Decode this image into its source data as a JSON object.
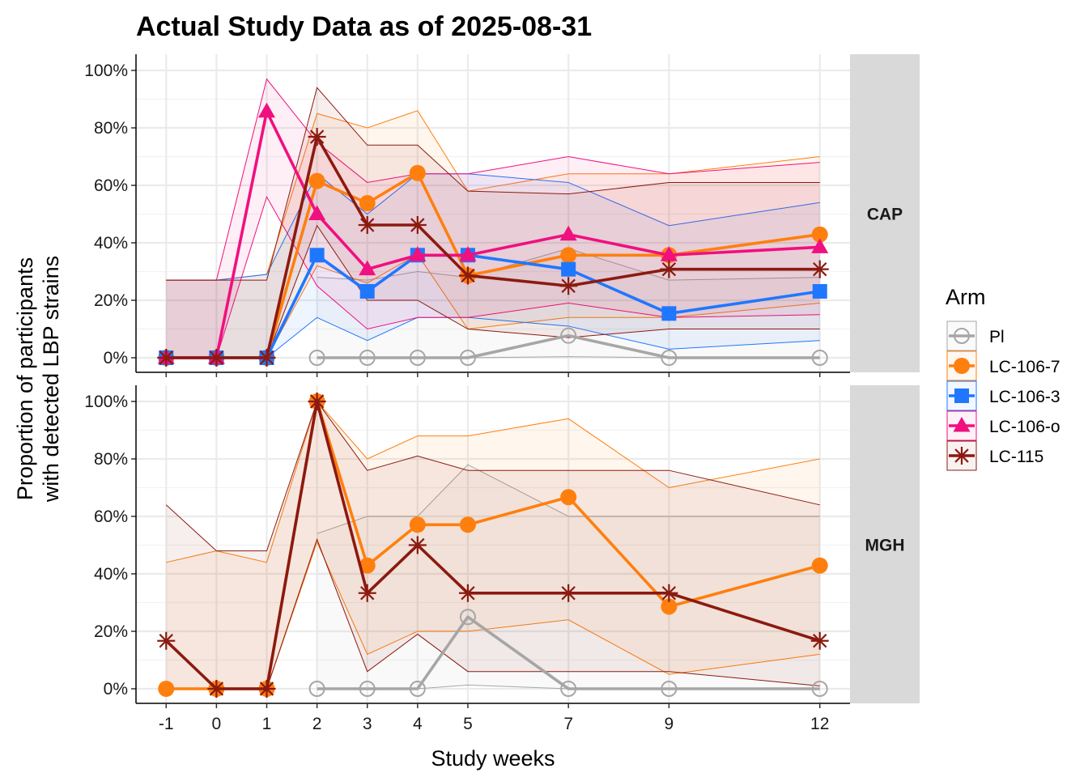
{
  "chart_data": {
    "type": "line",
    "title": "Actual Study Data as of 2025-08-31",
    "xlabel": "Study weeks",
    "ylabel_line1": "Proportion of participants",
    "ylabel_line2": "with detected LBP strains",
    "x": [
      -1,
      0,
      1,
      2,
      3,
      4,
      5,
      7,
      9,
      12
    ],
    "x_tick_labels": [
      "-1",
      "0",
      "1",
      "2",
      "3",
      "4",
      "5",
      "7",
      "9",
      "12"
    ],
    "ylim": [
      0,
      1
    ],
    "y_ticks": [
      0,
      0.2,
      0.4,
      0.6,
      0.8,
      1.0
    ],
    "y_tick_labels": [
      "0%",
      "20%",
      "40%",
      "60%",
      "80%",
      "100%"
    ],
    "grid": true,
    "legend": {
      "title": "Arm",
      "position": "right",
      "entries": [
        "Pl",
        "LC-106-7",
        "LC-106-3",
        "LC-106-o",
        "LC-115"
      ]
    },
    "series_styles": [
      {
        "arm": "Pl",
        "color": "#a6a6a6",
        "marker": "open-circle"
      },
      {
        "arm": "LC-106-7",
        "color": "#ff7f0e",
        "marker": "filled-circle"
      },
      {
        "arm": "LC-106-3",
        "color": "#1f77ff",
        "marker": "filled-square"
      },
      {
        "arm": "LC-106-o",
        "color": "#f0107f",
        "marker": "filled-triangle"
      },
      {
        "arm": "LC-115",
        "color": "#8b1a10",
        "marker": "asterisk"
      }
    ],
    "panels": [
      {
        "label": "CAP",
        "series": [
          {
            "arm": "Pl",
            "x": [
              2,
              3,
              4,
              5,
              7,
              9,
              12
            ],
            "values": [
              0,
              0,
              0,
              0,
              0.077,
              0,
              0
            ],
            "lower": [
              0,
              0,
              0,
              0,
              0.004,
              0,
              0
            ],
            "upper": [
              0.28,
              0.27,
              0.3,
              0.28,
              0.38,
              0.27,
              0.28
            ]
          },
          {
            "arm": "LC-106-7",
            "x": [
              -1,
              0,
              1,
              2,
              3,
              4,
              5,
              7,
              9,
              12
            ],
            "values": [
              0,
              0,
              0,
              0.615,
              0.538,
              0.643,
              0.286,
              0.357,
              0.357,
              0.429
            ],
            "lower": [
              0,
              0,
              0,
              0.32,
              0.26,
              0.36,
              0.1,
              0.14,
              0.14,
              0.19
            ],
            "upper": [
              0.27,
              0.27,
              0.29,
              0.85,
              0.8,
              0.86,
              0.58,
              0.64,
              0.64,
              0.7
            ]
          },
          {
            "arm": "LC-106-3",
            "x": [
              -1,
              0,
              1,
              2,
              3,
              4,
              5,
              7,
              9,
              12
            ],
            "values": [
              0,
              0,
              0,
              0.357,
              0.231,
              0.357,
              0.357,
              0.308,
              0.154,
              0.231
            ],
            "lower": [
              0,
              0,
              0,
              0.14,
              0.06,
              0.14,
              0.14,
              0.11,
              0.03,
              0.06
            ],
            "upper": [
              0.27,
              0.27,
              0.29,
              0.64,
              0.5,
              0.64,
              0.64,
              0.61,
              0.46,
              0.54
            ]
          },
          {
            "arm": "LC-106-o",
            "x": [
              -1,
              0,
              1,
              2,
              3,
              4,
              5,
              7,
              9,
              12
            ],
            "values": [
              0,
              0,
              0.857,
              0.5,
              0.308,
              0.357,
              0.357,
              0.429,
              0.357,
              0.385
            ],
            "lower": [
              0,
              0,
              0.56,
              0.25,
              0.1,
              0.14,
              0.14,
              0.19,
              0.14,
              0.15
            ],
            "upper": [
              0.27,
              0.27,
              0.97,
              0.75,
              0.61,
              0.64,
              0.64,
              0.7,
              0.64,
              0.68
            ]
          },
          {
            "arm": "LC-115",
            "x": [
              -1,
              0,
              1,
              2,
              3,
              4,
              5,
              7,
              9,
              12
            ],
            "values": [
              0,
              0,
              0,
              0.769,
              0.462,
              0.462,
              0.286,
              0.25,
              0.308,
              0.308
            ],
            "lower": [
              0,
              0,
              0,
              0.46,
              0.2,
              0.2,
              0.1,
              0.07,
              0.1,
              0.1
            ],
            "upper": [
              0.27,
              0.27,
              0.27,
              0.94,
              0.74,
              0.74,
              0.58,
              0.57,
              0.61,
              0.61
            ]
          }
        ]
      },
      {
        "label": "MGH",
        "series": [
          {
            "arm": "Pl",
            "x": [
              2,
              3,
              4,
              5,
              7,
              9,
              12
            ],
            "values": [
              0,
              0,
              0,
              0.25,
              0,
              0,
              0
            ],
            "lower": [
              0,
              0,
              0,
              0.013,
              0,
              0,
              0
            ],
            "upper": [
              0.54,
              0.6,
              0.6,
              0.78,
              0.6,
              0.6,
              0.6
            ]
          },
          {
            "arm": "LC-106-7",
            "x": [
              -1,
              0,
              1,
              2,
              3,
              4,
              5,
              7,
              9,
              12
            ],
            "values": [
              0,
              0,
              0,
              1.0,
              0.429,
              0.571,
              0.571,
              0.667,
              0.286,
              0.429
            ],
            "lower": [
              0,
              0,
              0,
              0.51,
              0.12,
              0.2,
              0.2,
              0.24,
              0.05,
              0.12
            ],
            "upper": [
              0.44,
              0.48,
              0.44,
              1.0,
              0.8,
              0.88,
              0.88,
              0.94,
              0.7,
              0.8
            ]
          },
          {
            "arm": "LC-115",
            "x": [
              -1,
              0,
              1,
              2,
              3,
              4,
              5,
              7,
              9,
              12
            ],
            "values": [
              0.167,
              0,
              0,
              1.0,
              0.333,
              0.5,
              0.333,
              0.333,
              0.333,
              0.167
            ],
            "lower": [
              0,
              0,
              0,
              0.52,
              0.06,
              0.19,
              0.06,
              0.06,
              0.06,
              0.01
            ],
            "upper": [
              0.64,
              0.48,
              0.48,
              1.0,
              0.76,
              0.81,
              0.76,
              0.76,
              0.76,
              0.64
            ]
          }
        ]
      }
    ]
  }
}
